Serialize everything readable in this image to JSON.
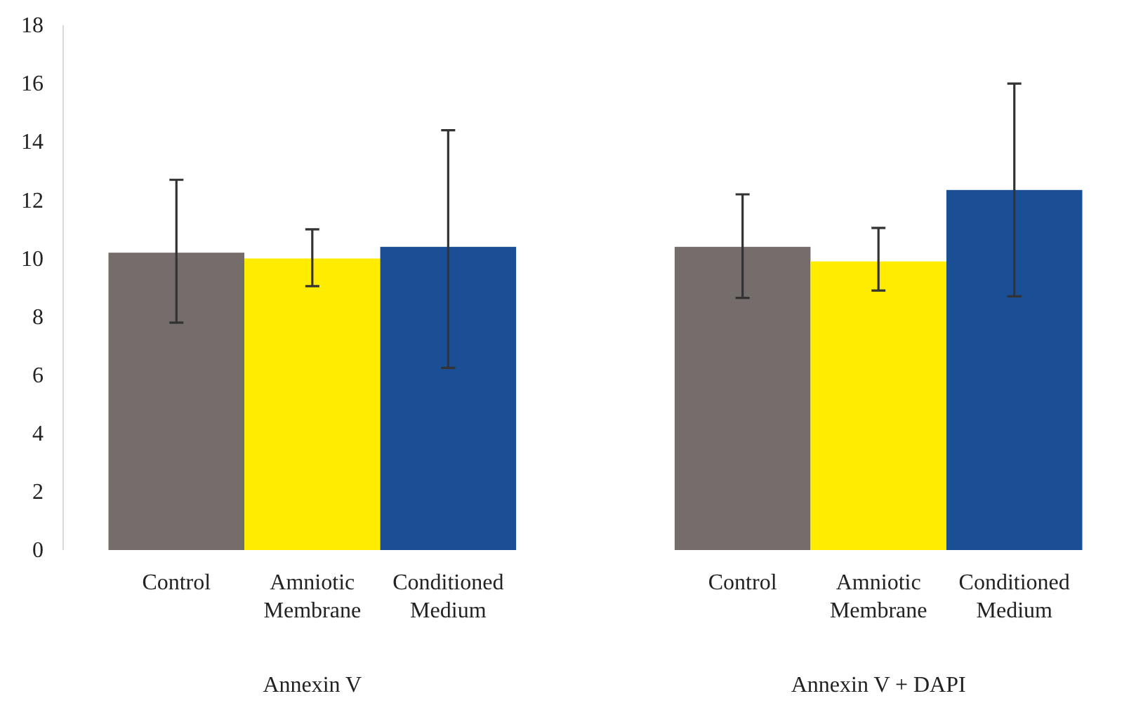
{
  "chart_data": {
    "type": "bar",
    "categories": [
      "Annexin V",
      "Annexin V + DAPI"
    ],
    "series": [
      {
        "name": "Control",
        "color": "#756d6b",
        "values": [
          10.2,
          10.4
        ],
        "errors": [
          [
            7.8,
            12.7
          ],
          [
            8.65,
            12.2
          ]
        ]
      },
      {
        "name": "Amniotic Membrane",
        "color": "#ffec00",
        "values": [
          10.0,
          9.9
        ],
        "errors": [
          [
            9.05,
            11.0
          ],
          [
            8.9,
            11.05
          ]
        ]
      },
      {
        "name": "Conditioned Medium",
        "color": "#1a4f96",
        "values": [
          10.4,
          12.35
        ],
        "errors": [
          [
            6.25,
            14.4
          ],
          [
            8.7,
            16.0
          ]
        ]
      }
    ],
    "ylim": [
      0,
      18
    ],
    "yticks": [
      0,
      2,
      4,
      6,
      8,
      10,
      12,
      14,
      16,
      18
    ],
    "grid": false,
    "legend": false
  }
}
